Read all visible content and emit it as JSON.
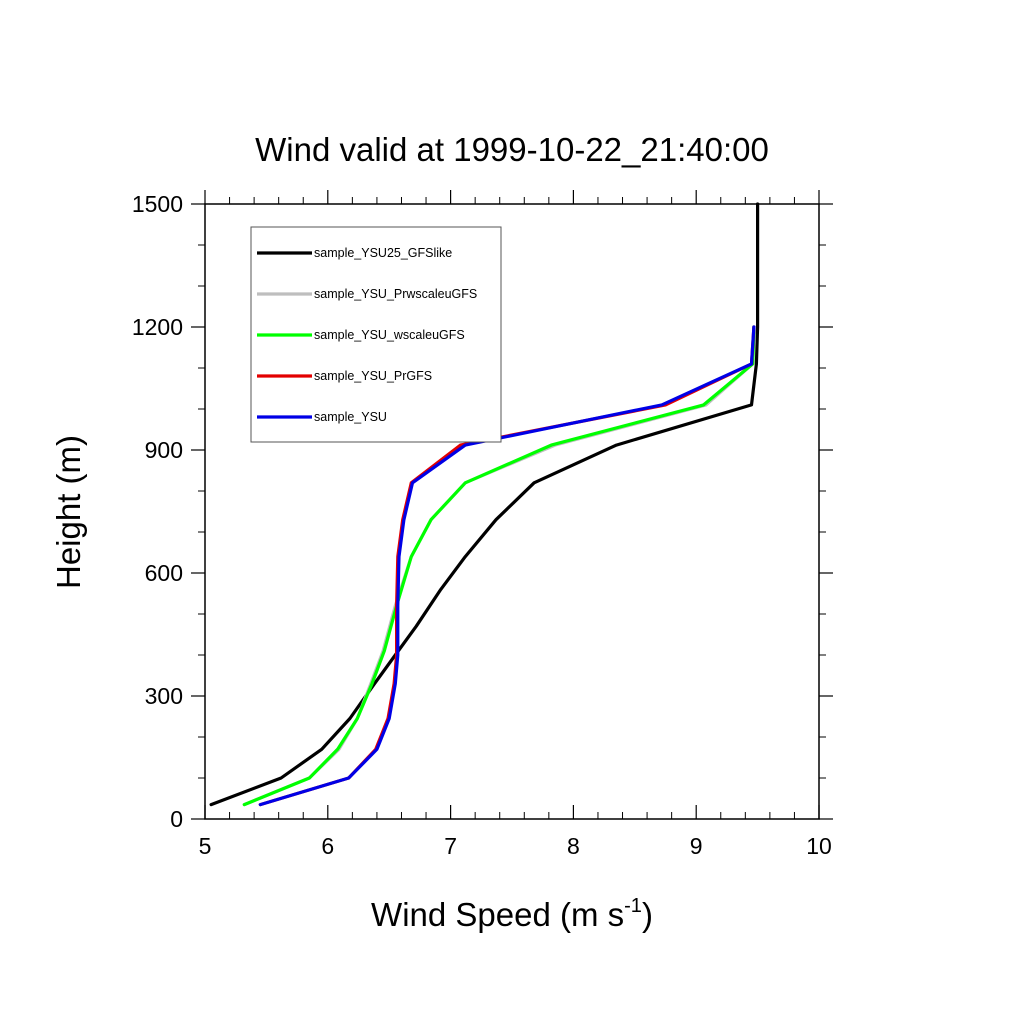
{
  "chart_data": {
    "type": "line",
    "title": "Wind valid at 1999-10-22_21:40:00",
    "xlabel": {
      "base": "Wind Speed (m s",
      "superscript": "-1",
      "close": ")"
    },
    "ylabel": "Height (m)",
    "xlim": [
      5,
      10
    ],
    "ylim": [
      0,
      1500
    ],
    "x_ticks": [
      5,
      6,
      7,
      8,
      9,
      10
    ],
    "y_ticks": [
      0,
      300,
      600,
      900,
      1200,
      1500
    ],
    "grid": false,
    "legend_position": "top-left",
    "series": [
      {
        "name": "sample_YSU25_GFSlike",
        "color": "#000000",
        "points": [
          [
            5.05,
            35
          ],
          [
            5.62,
            100
          ],
          [
            5.95,
            170
          ],
          [
            6.18,
            245
          ],
          [
            6.38,
            330
          ],
          [
            6.55,
            400
          ],
          [
            6.72,
            470
          ],
          [
            6.92,
            560
          ],
          [
            7.12,
            640
          ],
          [
            7.37,
            730
          ],
          [
            7.68,
            820
          ],
          [
            8.35,
            912
          ],
          [
            9.45,
            1010
          ],
          [
            9.49,
            1110
          ],
          [
            9.5,
            1200
          ],
          [
            9.5,
            1500
          ]
        ]
      },
      {
        "name": "sample_YSU_PrwscaleuGFS",
        "color": "#bebebe",
        "points": [
          [
            5.32,
            35
          ],
          [
            5.85,
            100
          ],
          [
            6.09,
            170
          ],
          [
            6.24,
            245
          ],
          [
            6.35,
            330
          ],
          [
            6.45,
            410
          ],
          [
            6.55,
            520
          ],
          [
            6.68,
            640
          ],
          [
            6.84,
            730
          ],
          [
            7.12,
            820
          ],
          [
            7.85,
            912
          ],
          [
            9.08,
            1010
          ],
          [
            9.46,
            1110
          ],
          [
            9.47,
            1200
          ]
        ]
      },
      {
        "name": "sample_YSU_wscaleuGFS",
        "color": "#00ff00",
        "points": [
          [
            5.32,
            35
          ],
          [
            5.85,
            100
          ],
          [
            6.08,
            170
          ],
          [
            6.24,
            245
          ],
          [
            6.36,
            330
          ],
          [
            6.46,
            410
          ],
          [
            6.56,
            520
          ],
          [
            6.68,
            640
          ],
          [
            6.84,
            730
          ],
          [
            7.12,
            820
          ],
          [
            7.82,
            912
          ],
          [
            9.06,
            1010
          ],
          [
            9.46,
            1110
          ],
          [
            9.47,
            1200
          ]
        ]
      },
      {
        "name": "sample_YSU_PrGFS",
        "color": "#e30000",
        "points": [
          [
            5.45,
            35
          ],
          [
            6.17,
            100
          ],
          [
            6.39,
            170
          ],
          [
            6.49,
            245
          ],
          [
            6.54,
            330
          ],
          [
            6.56,
            400
          ],
          [
            6.56,
            520
          ],
          [
            6.57,
            640
          ],
          [
            6.61,
            730
          ],
          [
            6.68,
            820
          ],
          [
            7.08,
            912
          ],
          [
            8.75,
            1010
          ],
          [
            9.45,
            1110
          ],
          [
            9.47,
            1200
          ]
        ]
      },
      {
        "name": "sample_YSU",
        "color": "#0000e6",
        "points": [
          [
            5.45,
            35
          ],
          [
            6.17,
            100
          ],
          [
            6.4,
            170
          ],
          [
            6.5,
            245
          ],
          [
            6.55,
            330
          ],
          [
            6.57,
            400
          ],
          [
            6.57,
            520
          ],
          [
            6.58,
            640
          ],
          [
            6.62,
            730
          ],
          [
            6.69,
            820
          ],
          [
            7.12,
            912
          ],
          [
            8.72,
            1010
          ],
          [
            9.45,
            1110
          ],
          [
            9.47,
            1200
          ]
        ]
      }
    ]
  }
}
